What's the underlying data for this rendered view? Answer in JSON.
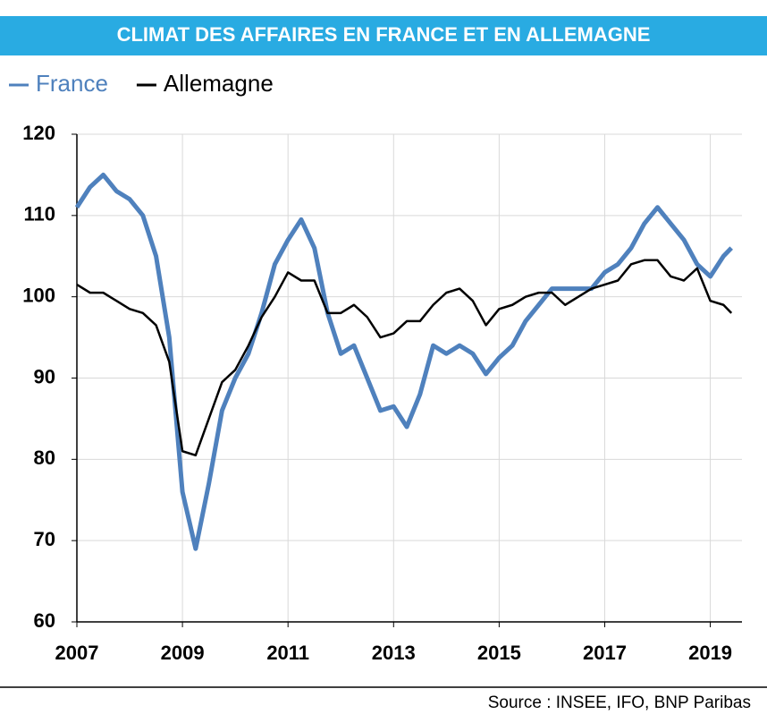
{
  "chart_data": {
    "type": "line",
    "title": "CLIMAT DES AFFAIRES EN FRANCE ET EN ALLEMAGNE",
    "source": "Source : INSEE, IFO, BNP Paribas",
    "x": [
      2007,
      2007.25,
      2007.5,
      2007.75,
      2008,
      2008.25,
      2008.5,
      2008.75,
      2009,
      2009.25,
      2009.5,
      2009.75,
      2010,
      2010.25,
      2010.5,
      2010.75,
      2011,
      2011.25,
      2011.5,
      2011.75,
      2012,
      2012.25,
      2012.5,
      2012.75,
      2013,
      2013.25,
      2013.5,
      2013.75,
      2014,
      2014.25,
      2014.5,
      2014.75,
      2015,
      2015.25,
      2015.5,
      2015.75,
      2016,
      2016.25,
      2016.5,
      2016.75,
      2017,
      2017.25,
      2017.5,
      2017.75,
      2018,
      2018.25,
      2018.5,
      2018.75,
      2019,
      2019.25,
      2019.4
    ],
    "series": [
      {
        "name": "France",
        "color": "#4f81bd",
        "values": [
          111,
          113.5,
          115,
          113,
          112,
          110,
          105,
          95,
          76,
          69,
          77,
          86,
          90,
          93,
          98,
          104,
          107,
          109.5,
          106,
          98,
          93,
          94,
          90,
          86,
          86.5,
          84,
          88,
          94,
          93,
          94,
          93,
          90.5,
          92.5,
          94,
          97,
          99,
          101,
          101,
          101,
          101,
          103,
          104,
          106,
          109,
          111,
          109,
          107,
          104,
          102.5,
          105,
          106
        ]
      },
      {
        "name": "Allemagne",
        "color": "#000000",
        "values": [
          101.5,
          100.5,
          100.5,
          99.5,
          98.5,
          98,
          96.5,
          92,
          81,
          80.5,
          85,
          89.5,
          91,
          94,
          97.5,
          100,
          103,
          102,
          102,
          98,
          98,
          99,
          97.5,
          95,
          95.5,
          97,
          97,
          99,
          100.5,
          101,
          99.5,
          96.5,
          98.5,
          99,
          100,
          100.5,
          100.5,
          99,
          100,
          101,
          101.5,
          102,
          104,
          104.5,
          104.5,
          102.5,
          102,
          103.5,
          99.5,
          99,
          98
        ]
      }
    ],
    "xlim": [
      2007,
      2019.6
    ],
    "xticks": [
      2007,
      2009,
      2011,
      2013,
      2015,
      2017,
      2019
    ],
    "ylim": [
      60,
      120
    ],
    "yticks": [
      60,
      70,
      80,
      90,
      100,
      110,
      120
    ],
    "grid": true
  }
}
